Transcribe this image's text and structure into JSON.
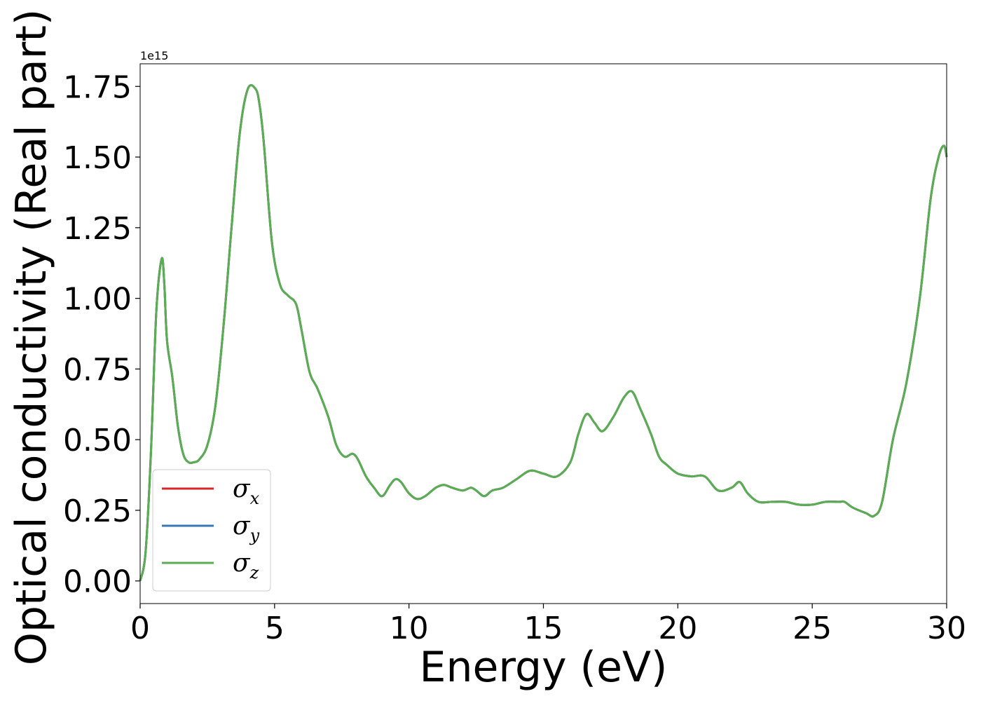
{
  "chart_data": {
    "type": "line",
    "xlabel": "Energy (eV)",
    "ylabel": "Optical conductivity (Real part)",
    "y_offset_label": "1e15",
    "xlim": [
      0,
      30
    ],
    "ylim": [
      -0.08,
      1.83
    ],
    "y_scale_factor": "1e15",
    "grid": false,
    "legend_position": "lower-left",
    "x_ticks": [
      0,
      5,
      10,
      15,
      20,
      25,
      30
    ],
    "x_tick_labels": [
      "0",
      "5",
      "10",
      "15",
      "20",
      "25",
      "30"
    ],
    "y_ticks": [
      0.0,
      0.25,
      0.5,
      0.75,
      1.0,
      1.25,
      1.5,
      1.75
    ],
    "y_tick_labels": [
      "0.00",
      "0.25",
      "0.50",
      "0.75",
      "1.00",
      "1.25",
      "1.50",
      "1.75"
    ],
    "series": [
      {
        "name": "σx",
        "symbol": "σ",
        "subscript": "x",
        "color": "#d62728"
      },
      {
        "name": "σy",
        "symbol": "σ",
        "subscript": "y",
        "color": "#3a77b3"
      },
      {
        "name": "σz",
        "symbol": "σ",
        "subscript": "z",
        "color": "#5aad52"
      }
    ],
    "shared_curve": {
      "x": [
        0,
        0.2,
        0.4,
        0.6,
        0.8,
        0.9,
        1.0,
        1.2,
        1.4,
        1.6,
        1.8,
        2.0,
        2.2,
        2.5,
        2.8,
        3.1,
        3.4,
        3.7,
        4.0,
        4.3,
        4.45,
        4.6,
        4.9,
        5.2,
        5.5,
        5.8,
        6.0,
        6.3,
        6.6,
        7.0,
        7.3,
        7.6,
        7.9,
        8.1,
        8.4,
        8.7,
        9.0,
        9.3,
        9.5,
        9.7,
        10.0,
        10.3,
        10.6,
        11.0,
        11.3,
        11.6,
        12.0,
        12.3,
        12.5,
        12.8,
        13.1,
        13.5,
        14.0,
        14.5,
        15.0,
        15.5,
        16.0,
        16.3,
        16.6,
        16.9,
        17.2,
        17.6,
        18.0,
        18.3,
        18.6,
        19.0,
        19.3,
        19.6,
        20.0,
        20.5,
        21.0,
        21.5,
        22.0,
        22.3,
        22.6,
        23.0,
        23.5,
        24.0,
        24.5,
        25.0,
        25.5,
        26.0,
        26.2,
        26.5,
        27.0,
        27.3,
        27.6,
        28.0,
        28.5,
        29.0,
        29.4,
        29.7,
        29.9,
        30.0
      ],
      "y": [
        0.0,
        0.1,
        0.45,
        0.95,
        1.14,
        1.05,
        0.85,
        0.72,
        0.55,
        0.45,
        0.42,
        0.42,
        0.43,
        0.48,
        0.62,
        0.9,
        1.25,
        1.58,
        1.74,
        1.74,
        1.68,
        1.55,
        1.2,
        1.05,
        1.01,
        0.98,
        0.89,
        0.74,
        0.68,
        0.58,
        0.48,
        0.44,
        0.45,
        0.43,
        0.37,
        0.33,
        0.3,
        0.34,
        0.36,
        0.35,
        0.31,
        0.29,
        0.3,
        0.33,
        0.34,
        0.33,
        0.32,
        0.33,
        0.32,
        0.3,
        0.32,
        0.33,
        0.36,
        0.39,
        0.38,
        0.37,
        0.42,
        0.52,
        0.59,
        0.56,
        0.53,
        0.58,
        0.65,
        0.67,
        0.61,
        0.52,
        0.44,
        0.41,
        0.38,
        0.37,
        0.37,
        0.32,
        0.33,
        0.35,
        0.31,
        0.28,
        0.28,
        0.28,
        0.27,
        0.27,
        0.28,
        0.28,
        0.28,
        0.26,
        0.24,
        0.23,
        0.28,
        0.5,
        0.7,
        1.0,
        1.35,
        1.5,
        1.54,
        1.5
      ]
    }
  }
}
